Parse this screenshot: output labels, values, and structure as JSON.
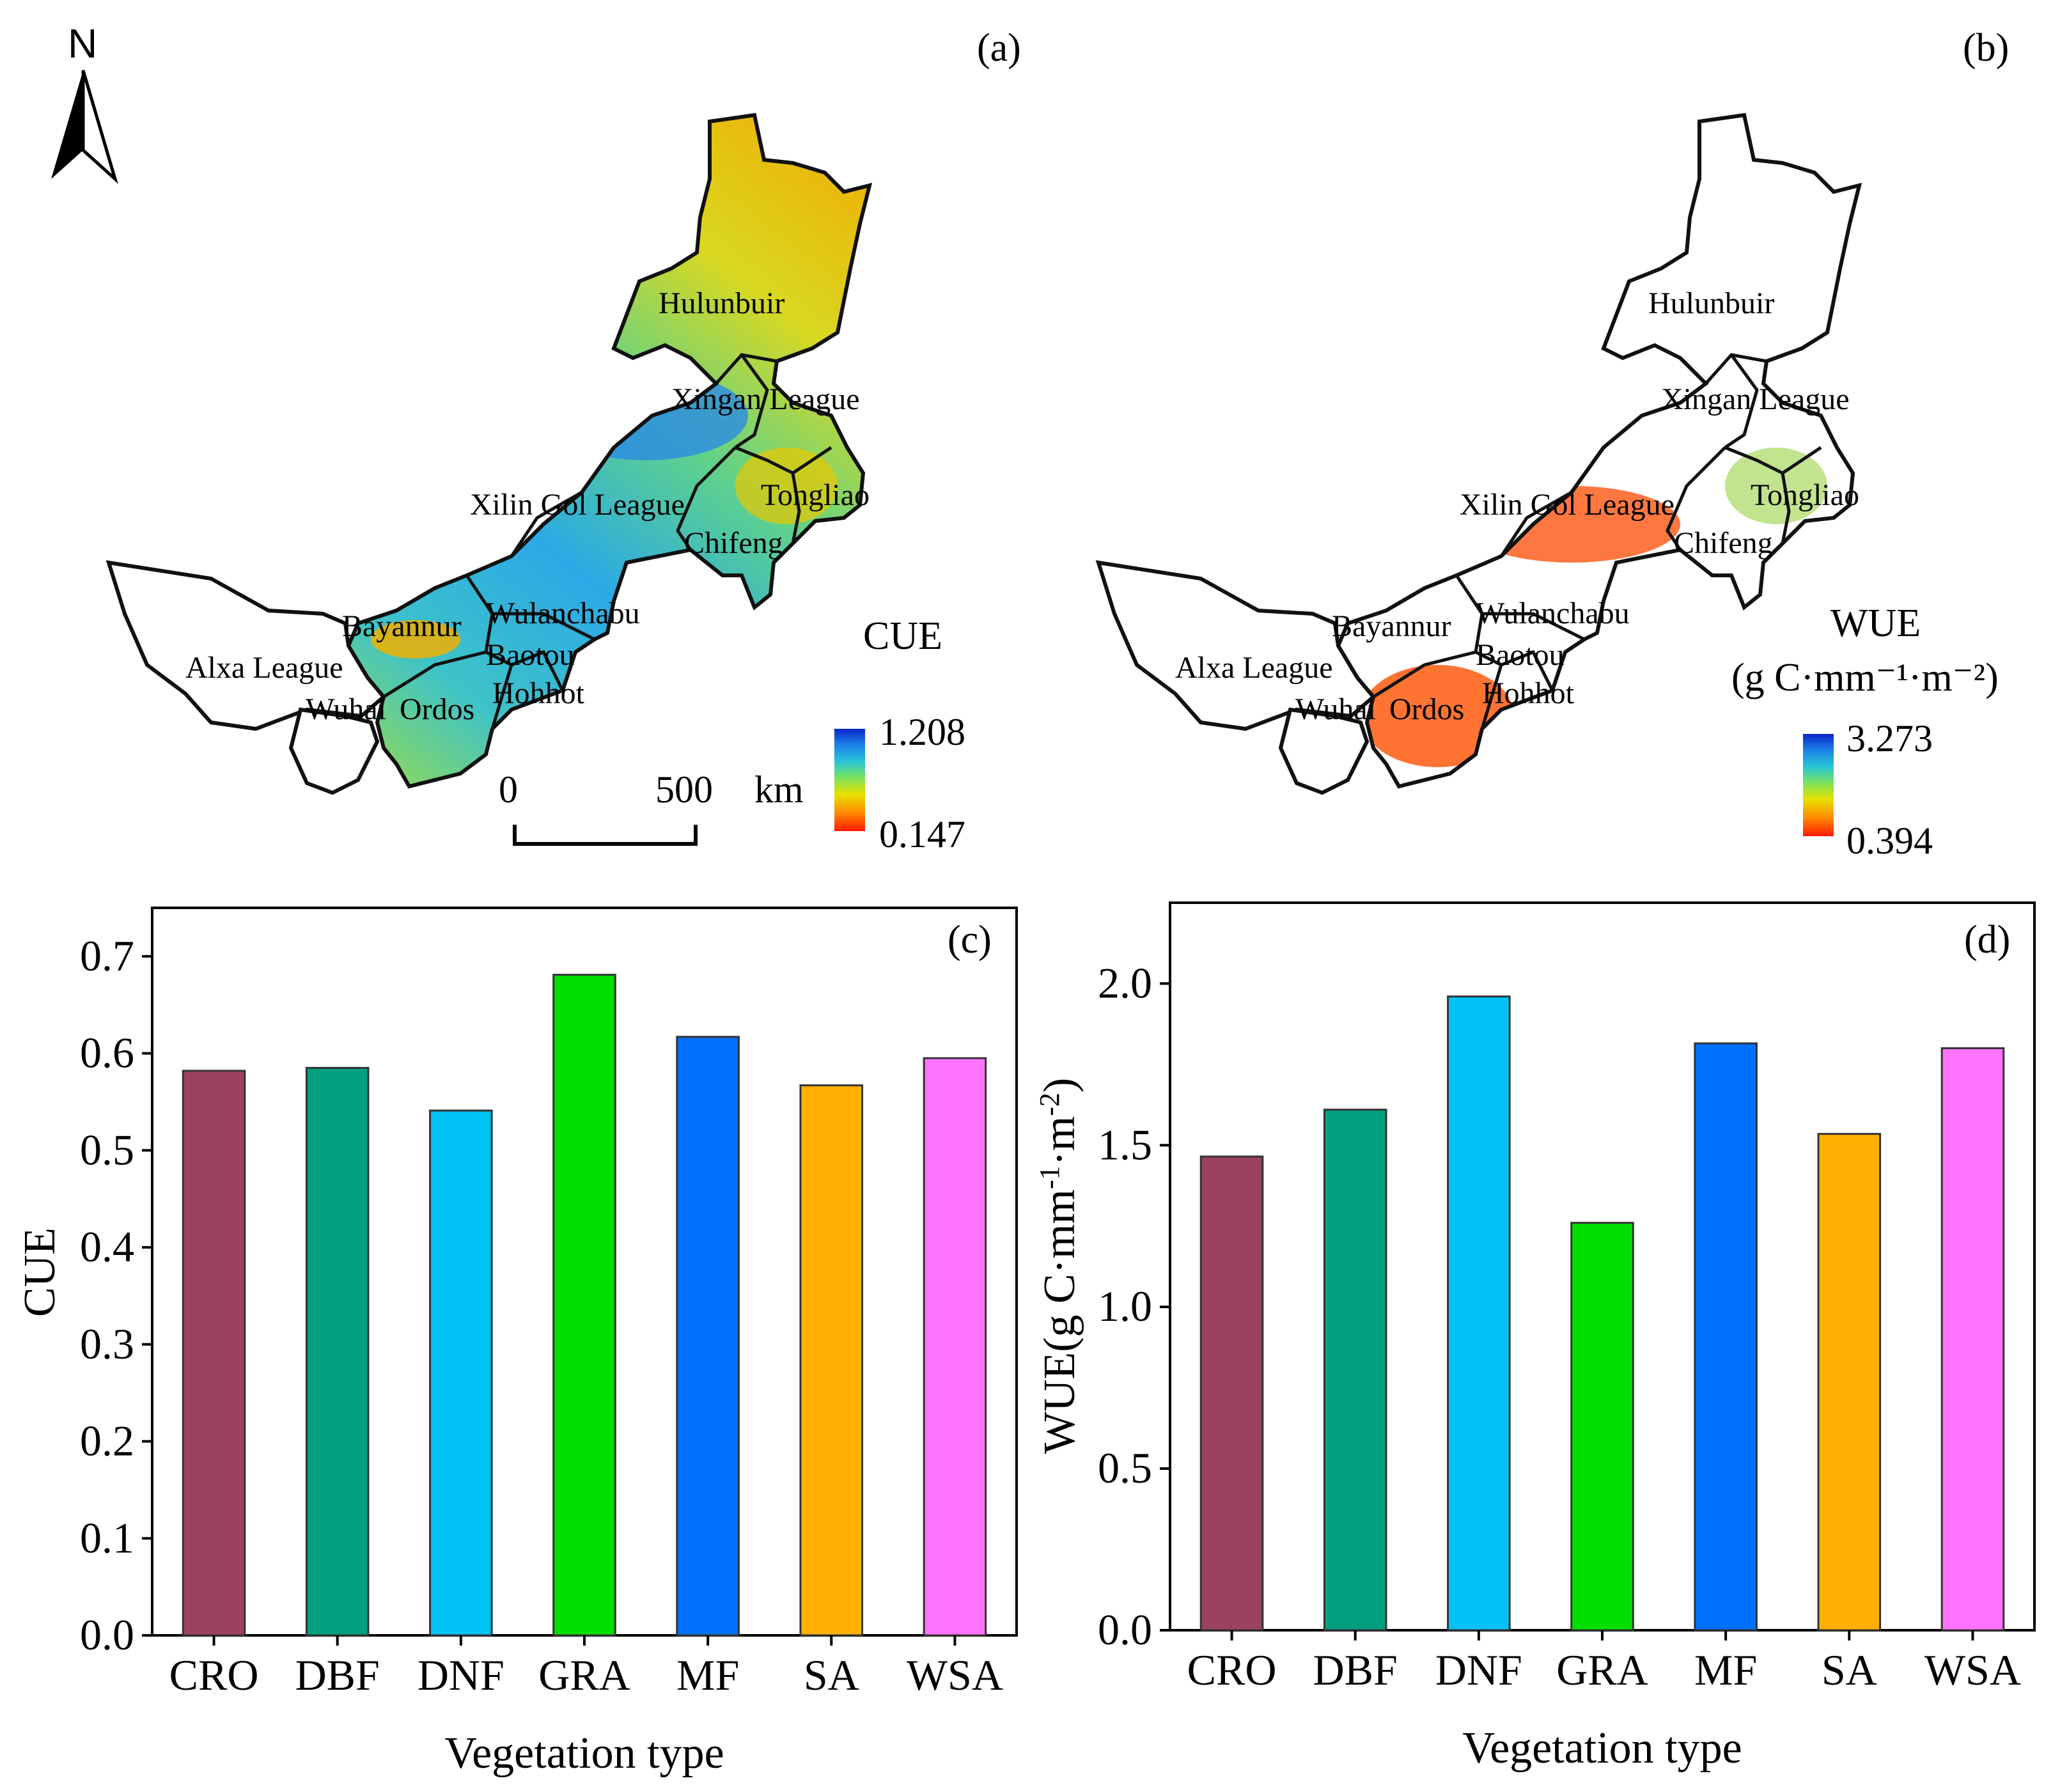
{
  "figure": {
    "north_label": "N",
    "colors": {
      "map_outline": "#111111",
      "alxa_fill": "#ffffff",
      "cue_ramp": [
        "#ff1a00",
        "#ff8a00",
        "#e8e000",
        "#7be35a",
        "#27c6d6",
        "#1b7ee8",
        "#0a23c8"
      ],
      "wue_ramp": [
        "#ff1a00",
        "#ff8a00",
        "#e8e000",
        "#7be35a",
        "#27c6d6",
        "#1b7ee8",
        "#0a23c8"
      ],
      "bar_outline": "#333333"
    }
  },
  "maps": [
    {
      "panel_label": "(a)",
      "legend_title_line1": "CUE",
      "legend_title_line2": "",
      "legend_max": "1.208",
      "legend_min": "0.147",
      "scalebar_start": "0",
      "scalebar_end": "500",
      "scalebar_unit": "km",
      "regions": [
        "Hulunbuir",
        "Xingan League",
        "Xilin Gol League",
        "Tongliao",
        "Chifeng",
        "Wulanchabu",
        "Bayannur",
        "Baotou",
        "Alxa League",
        "Hohhot",
        "Wuhai",
        "Ordos"
      ]
    },
    {
      "panel_label": "(b)",
      "legend_title_line1": "WUE",
      "legend_title_line2": "(g C·mm⁻¹·m⁻²)",
      "legend_max": "3.273",
      "legend_min": "0.394",
      "regions": [
        "Hulunbuir",
        "Xingan League",
        "Xilin Gol League",
        "Tongliao",
        "Chifeng",
        "Wulanchabu",
        "Bayannur",
        "Baotou",
        "Alxa League",
        "Hohhot",
        "Wuhai",
        "Ordos"
      ]
    }
  ],
  "chart_data": [
    {
      "type": "bar",
      "panel_label": "(c)",
      "title": "",
      "categories": [
        "CRO",
        "DBF",
        "DNF",
        "GRA",
        "MF",
        "SA",
        "WSA"
      ],
      "values": [
        0.582,
        0.585,
        0.541,
        0.681,
        0.617,
        0.567,
        0.595
      ],
      "colors": [
        "#9b4262",
        "#00a07f",
        "#00c2f5",
        "#00e000",
        "#0070ff",
        "#ffb000",
        "#ff73ff"
      ],
      "xlabel": "Vegetation type",
      "ylabel": "CUE",
      "ylim": [
        0,
        0.75
      ],
      "yticks": [
        0.0,
        0.1,
        0.2,
        0.3,
        0.4,
        0.5,
        0.6,
        0.7
      ],
      "ytick_labels": [
        "0.0",
        "0.1",
        "0.2",
        "0.3",
        "0.4",
        "0.5",
        "0.6",
        "0.7"
      ],
      "grid": false
    },
    {
      "type": "bar",
      "panel_label": "(d)",
      "title": "",
      "categories": [
        "CRO",
        "DBF",
        "DNF",
        "GRA",
        "MF",
        "SA",
        "WSA"
      ],
      "values": [
        1.465,
        1.61,
        1.96,
        1.26,
        1.815,
        1.535,
        1.8
      ],
      "colors": [
        "#9b4262",
        "#00a07f",
        "#00c2f5",
        "#00e000",
        "#0070ff",
        "#ffb000",
        "#ff73ff"
      ],
      "xlabel": "Vegetation type",
      "ylabel_main": "WUE(g C·mm",
      "ylabel_sup1": "-1",
      "ylabel_mid": "·m",
      "ylabel_sup2": "-2",
      "ylabel_end": ")",
      "ylim": [
        0,
        2.25
      ],
      "yticks": [
        0.0,
        0.5,
        1.0,
        1.5,
        2.0
      ],
      "ytick_labels": [
        "0.0",
        "0.5",
        "1.0",
        "1.5",
        "2.0"
      ],
      "grid": false
    }
  ]
}
